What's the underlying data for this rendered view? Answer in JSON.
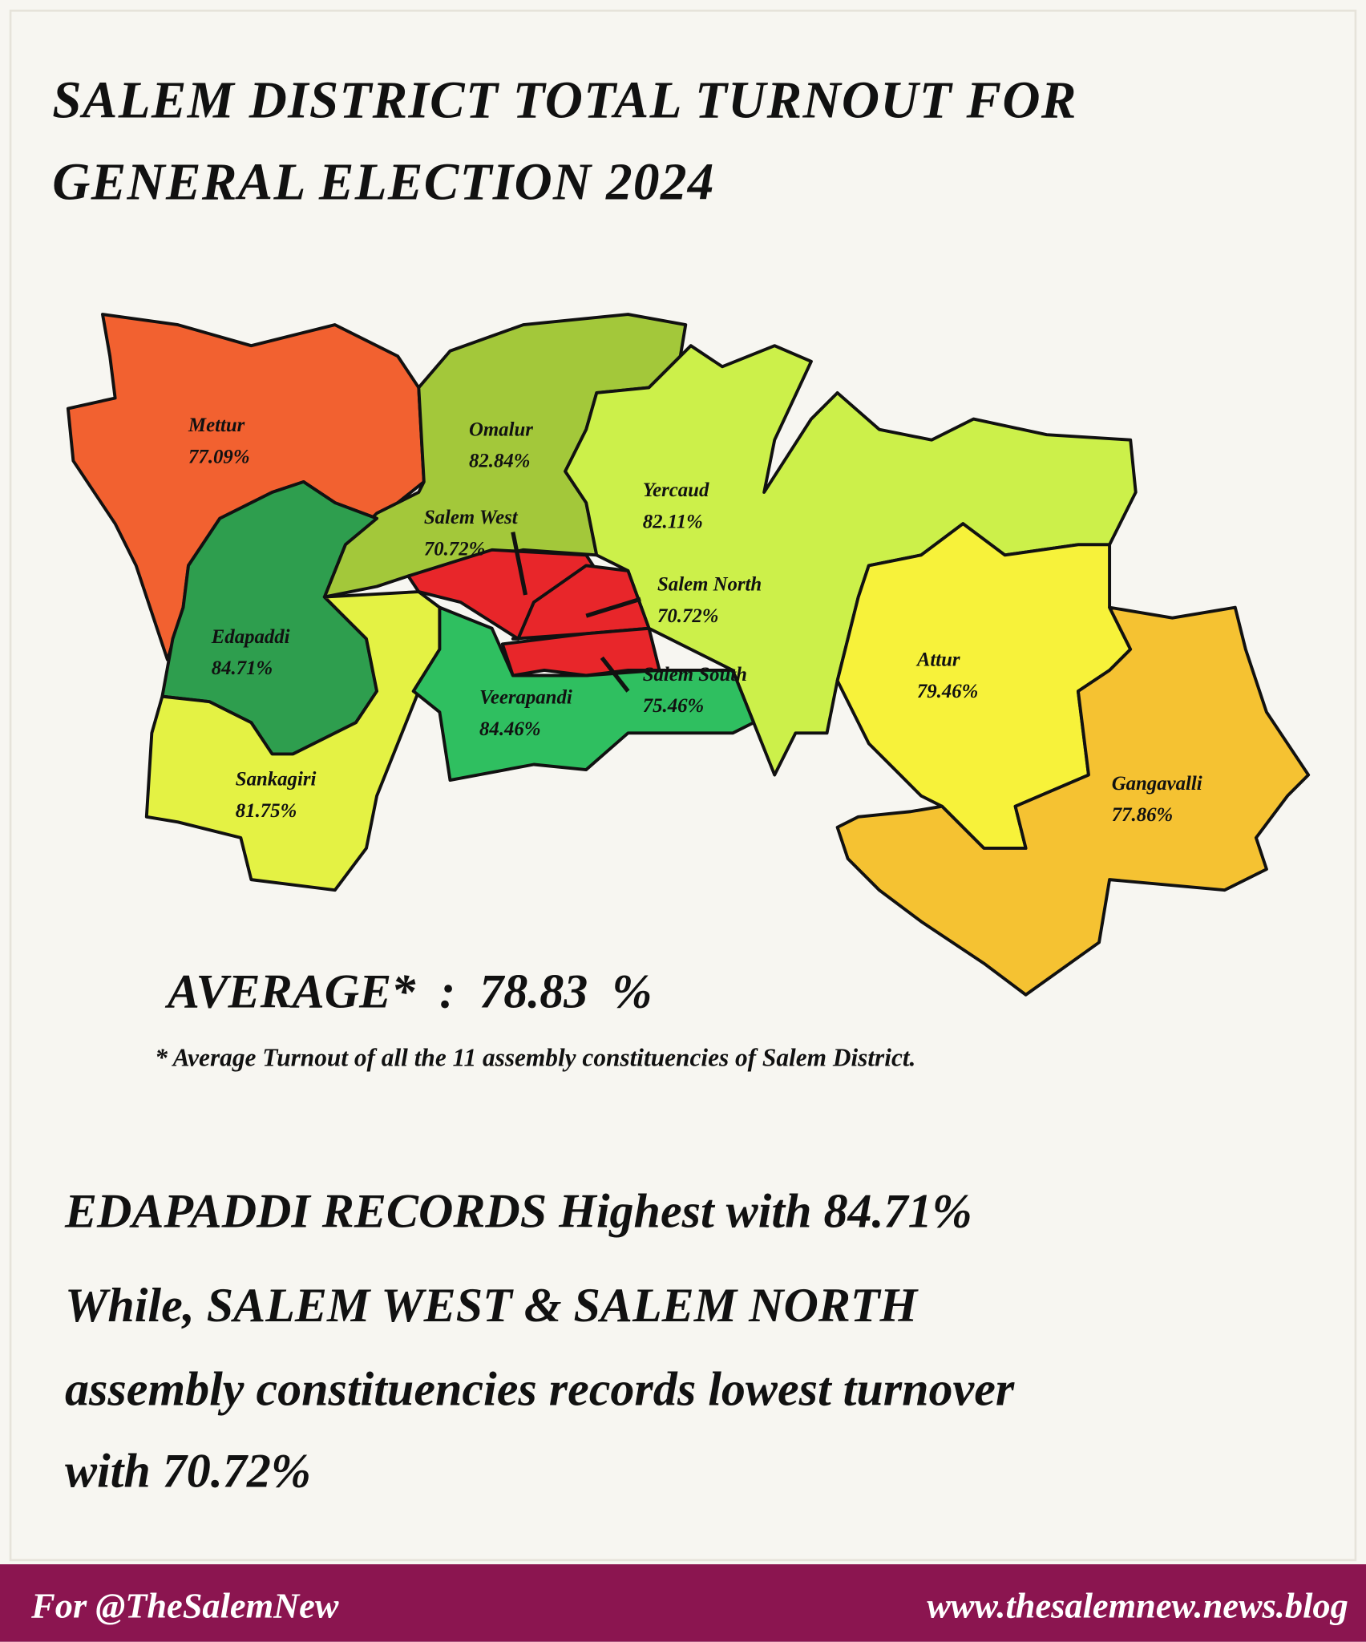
{
  "header": {
    "title_lines": [
      "SALEM DISTRICT TOTAL TURNOUT FOR",
      "GENERAL ELECTION 2024"
    ]
  },
  "regions": [
    {
      "name": "Mettur",
      "turnout": "77.09%"
    },
    {
      "name": "Omalur",
      "turnout": "82.84%"
    },
    {
      "name": "Yercaud",
      "turnout": "82.11%"
    },
    {
      "name": "Salem West",
      "turnout": "70.72%"
    },
    {
      "name": "Salem North",
      "turnout": "70.72%"
    },
    {
      "name": "Edapaddi",
      "turnout": "84.71%"
    },
    {
      "name": "Attur",
      "turnout": "79.46%"
    },
    {
      "name": "Salem South",
      "turnout": "75.46%"
    },
    {
      "name": "Veerapandi",
      "turnout": "84.46%"
    },
    {
      "name": "Gangavalli",
      "turnout": "77.86%"
    },
    {
      "name": "Sankagiri",
      "turnout": "81.75%"
    }
  ],
  "average": {
    "label": "AVERAGE*  :  78.83  %",
    "footnote": "* Average Turnout of all the 11 assembly constituencies of Salem District."
  },
  "summary": [
    "EDAPADDI RECORDS Highest with 84.71%",
    "While, SALEM WEST & SALEM NORTH",
    "assembly constituencies records lowest turnover",
    "with 70.72%"
  ],
  "footer": {
    "left": "For @TheSalemNew",
    "right": "www.thesalemnew.news.blog"
  }
}
